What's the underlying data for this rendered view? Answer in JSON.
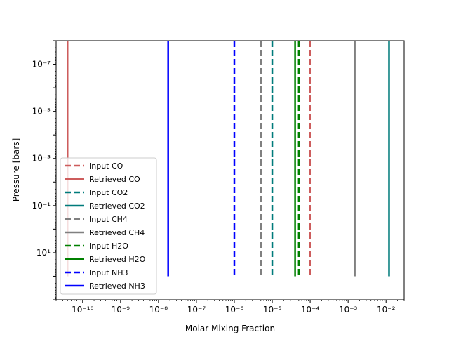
{
  "chart_data": {
    "type": "line",
    "xlabel": "Molar Mixing Fraction",
    "ylabel": "Pressure [bars]",
    "x_scale": "log",
    "y_scale": "log",
    "y_inverted": true,
    "xlim": [
      2e-11,
      0.03
    ],
    "ylim": [
      1000,
      1e-08
    ],
    "legend_position": "lower-left",
    "x_ticks": [
      {
        "value": 1e-10,
        "label": "10⁻¹⁰"
      },
      {
        "value": 1e-09,
        "label": "10⁻⁹"
      },
      {
        "value": 1e-08,
        "label": "10⁻⁸"
      },
      {
        "value": 1e-07,
        "label": "10⁻⁷"
      },
      {
        "value": 1e-06,
        "label": "10⁻⁶"
      },
      {
        "value": 1e-05,
        "label": "10⁻⁵"
      },
      {
        "value": 0.0001,
        "label": "10⁻⁴"
      },
      {
        "value": 0.001,
        "label": "10⁻³"
      },
      {
        "value": 0.01,
        "label": "10⁻²"
      }
    ],
    "y_ticks": [
      {
        "value": 1e-07,
        "label": "10⁻⁷"
      },
      {
        "value": 1e-05,
        "label": "10⁻⁵"
      },
      {
        "value": 0.001,
        "label": "10⁻³"
      },
      {
        "value": 0.1,
        "label": "10⁻¹"
      },
      {
        "value": 10,
        "label": "10¹"
      }
    ],
    "pressure_range": [
      1e-08,
      100
    ],
    "series": [
      {
        "name": "Input CO",
        "color": "#cd5c5c",
        "style": "dashed",
        "x": 0.0001
      },
      {
        "name": "Retrieved CO",
        "color": "#cd5c5c",
        "style": "solid",
        "x": 4e-11
      },
      {
        "name": "Input CO2",
        "color": "#007b7b",
        "style": "dashed",
        "x": 1e-05
      },
      {
        "name": "Retrieved CO2",
        "color": "#007b7b",
        "style": "solid",
        "x": 0.012
      },
      {
        "name": "Input CH4",
        "color": "#808080",
        "style": "dashed",
        "x": 5e-06
      },
      {
        "name": "Retrieved CH4",
        "color": "#808080",
        "style": "solid",
        "x": 0.0015
      },
      {
        "name": "Input H2O",
        "color": "#008000",
        "style": "dashed",
        "x": 5e-05
      },
      {
        "name": "Retrieved H2O",
        "color": "#008000",
        "style": "solid",
        "x": 4e-05
      },
      {
        "name": "Input NH3",
        "color": "#0000ff",
        "style": "dashed",
        "x": 1e-06
      },
      {
        "name": "Retrieved NH3",
        "color": "#0000ff",
        "style": "solid",
        "x": 1.8e-08
      }
    ]
  }
}
